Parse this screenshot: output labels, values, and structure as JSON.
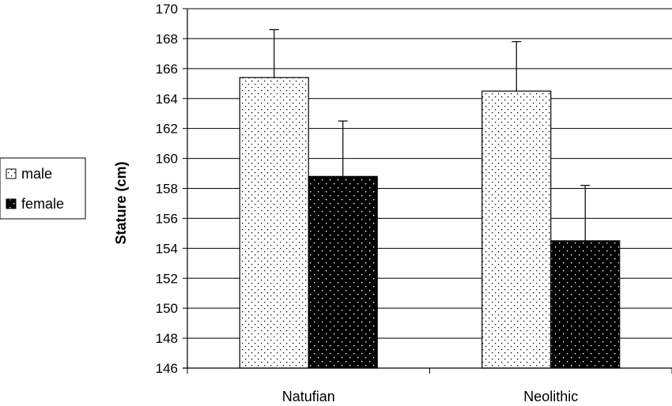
{
  "chart_data": {
    "type": "bar",
    "title": "",
    "xlabel": "",
    "ylabel": "Stature (cm)",
    "categories": [
      "Natufian",
      "Neolithic"
    ],
    "series": [
      {
        "name": "male",
        "values": [
          165.4,
          164.5
        ],
        "error": [
          3.2,
          3.3
        ],
        "color": "#ffffff",
        "dot_color": "#000000"
      },
      {
        "name": "female",
        "values": [
          158.8,
          154.5
        ],
        "error": [
          3.7,
          3.7
        ],
        "color": "#000000",
        "dot_color": "#ffffff"
      }
    ],
    "ylim": [
      146,
      170
    ],
    "yticks": [
      146,
      148,
      150,
      152,
      154,
      156,
      158,
      160,
      162,
      164,
      166,
      168,
      170
    ],
    "grid": true,
    "legend": "left"
  }
}
